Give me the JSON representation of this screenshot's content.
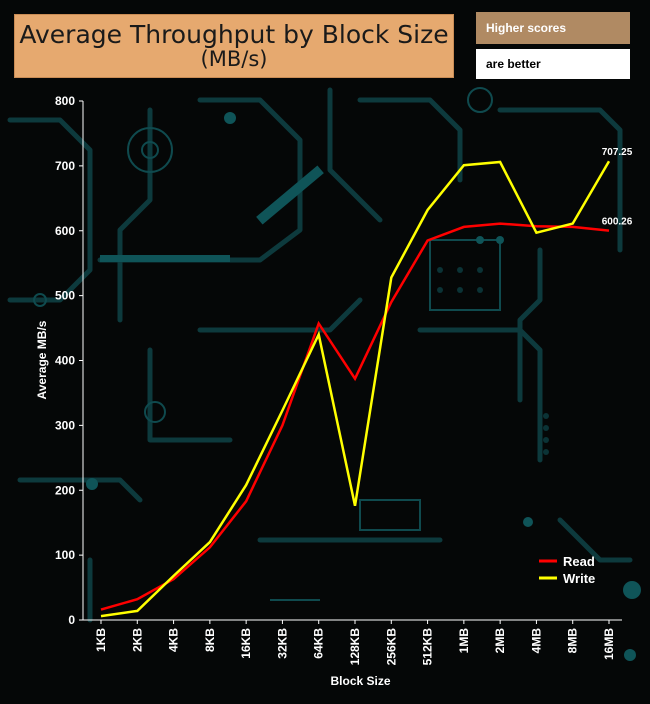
{
  "header": {
    "title_line1": "Average Throughput by Block Size",
    "title_line2": "(MB/s)",
    "note_line1": "Higher scores",
    "note_line2": "are better"
  },
  "chart_data": {
    "type": "line",
    "title": "Average Throughput by Block Size (MB/s)",
    "xlabel": "Block Size",
    "ylabel": "Average MB/s",
    "ylim": [
      0,
      800
    ],
    "yticks": [
      0,
      100,
      200,
      300,
      400,
      500,
      600,
      700,
      800
    ],
    "categories": [
      "1KB",
      "2KB",
      "4KB",
      "8KB",
      "16KB",
      "32KB",
      "64KB",
      "128KB",
      "256KB",
      "512KB",
      "1MB",
      "2MB",
      "4MB",
      "8MB",
      "16MB"
    ],
    "series": [
      {
        "name": "Read",
        "color": "#FF0000",
        "values": [
          16,
          32,
          63,
          112,
          183,
          300,
          457,
          372,
          490,
          585,
          606,
          611,
          607,
          606,
          600.26
        ],
        "end_label": "600.26"
      },
      {
        "name": "Write",
        "color": "#FFFF00",
        "values": [
          6,
          14,
          68,
          120,
          208,
          323,
          440,
          176,
          528,
          632,
          701,
          706,
          597,
          611,
          707.25
        ],
        "end_label": "707.25"
      }
    ],
    "legend": "bottom-right",
    "grid": false
  }
}
